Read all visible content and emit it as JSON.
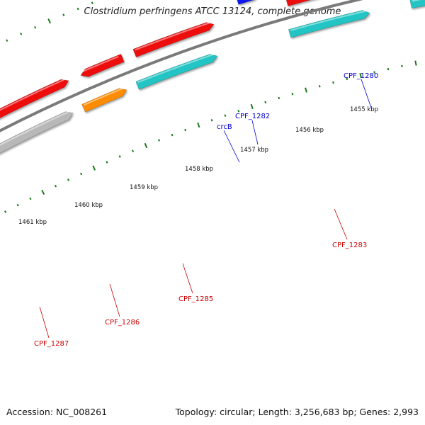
{
  "title": "Clostridium perfringens ATCC 13124, complete genome",
  "footer": {
    "accession": "Accession: NC_008261",
    "stats": "Topology: circular; Length: 3,256,683 bp; Genes: 2,993"
  },
  "kbp_labels": [
    "1455 kbp",
    "1456 kbp",
    "1457 kbp",
    "1458 kbp",
    "1459 kbp",
    "1460 kbp",
    "1461 kbp"
  ],
  "gene_labels": [
    {
      "text": "CPF_1280",
      "color": "#0000cc"
    },
    {
      "text": "CPF_1282",
      "color": "#0000cc"
    },
    {
      "text": "crcB",
      "color": "#0000cc"
    },
    {
      "text": "CPF_1283",
      "color": "#cc0000"
    },
    {
      "text": "CPF_1285",
      "color": "#cc0000"
    },
    {
      "text": "CPF_1286",
      "color": "#cc0000"
    },
    {
      "text": "CPF_1287",
      "color": "#cc0000"
    }
  ],
  "colors": {
    "backbone": "#7a7a7a",
    "ticks": "#1a7a1a",
    "red": "#ee1111",
    "cyan": "#20c4c4",
    "blue": "#0a14ee",
    "orange": "#ff8c00",
    "gray": "#b8b8b8",
    "purple": "#6a5acd",
    "khaki": "#eee49a",
    "dark": "#5a5a5a"
  }
}
